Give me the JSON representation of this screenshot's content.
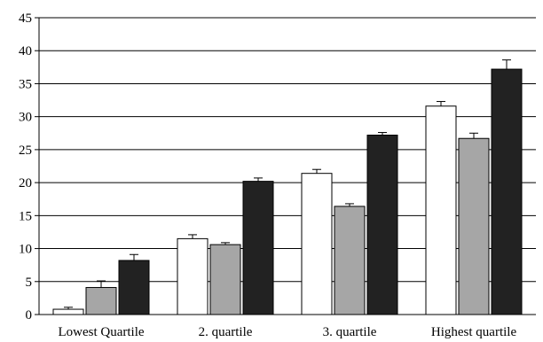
{
  "chart_data": {
    "type": "bar",
    "title": "",
    "xlabel": "",
    "ylabel": "",
    "ylim": [
      0,
      45
    ],
    "yticks": [
      0,
      5,
      10,
      15,
      20,
      25,
      30,
      35,
      40,
      45
    ],
    "grid": "horizontal",
    "legend": "none",
    "categories": [
      "Lowest Quartile",
      "2. quartile",
      "3. quartile",
      "Highest quartile"
    ],
    "series": [
      {
        "color": "#ffffff",
        "values": [
          0.8,
          11.5,
          21.4,
          31.6
        ],
        "errors": [
          0.3,
          0.6,
          0.6,
          0.7
        ]
      },
      {
        "color": "#a6a6a6",
        "values": [
          4.1,
          10.6,
          16.4,
          26.7
        ],
        "errors": [
          1.0,
          0.3,
          0.4,
          0.8
        ]
      },
      {
        "color": "#222222",
        "values": [
          8.2,
          20.2,
          27.2,
          37.2
        ],
        "errors": [
          0.9,
          0.5,
          0.4,
          1.4
        ]
      }
    ]
  }
}
